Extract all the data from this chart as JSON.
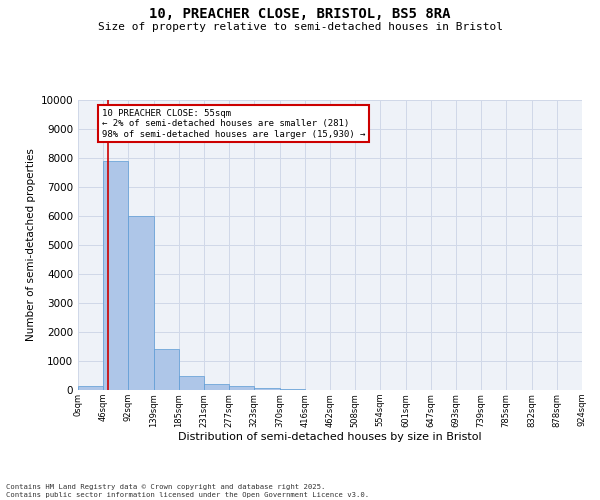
{
  "title_line1": "10, PREACHER CLOSE, BRISTOL, BS5 8RA",
  "title_line2": "Size of property relative to semi-detached houses in Bristol",
  "xlabel": "Distribution of semi-detached houses by size in Bristol",
  "ylabel": "Number of semi-detached properties",
  "property_size": 55,
  "annotation_line1": "10 PREACHER CLOSE: 55sqm",
  "annotation_line2": "← 2% of semi-detached houses are smaller (281)",
  "annotation_line3": "98% of semi-detached houses are larger (15,930) →",
  "bin_edges": [
    0,
    46,
    92,
    139,
    185,
    231,
    277,
    323,
    370,
    416,
    462,
    508,
    554,
    601,
    647,
    693,
    739,
    785,
    832,
    878,
    924
  ],
  "bin_labels": [
    "0sqm",
    "46sqm",
    "92sqm",
    "139sqm",
    "185sqm",
    "231sqm",
    "277sqm",
    "323sqm",
    "370sqm",
    "416sqm",
    "462sqm",
    "508sqm",
    "554sqm",
    "601sqm",
    "647sqm",
    "693sqm",
    "739sqm",
    "785sqm",
    "832sqm",
    "878sqm",
    "924sqm"
  ],
  "bar_values": [
    130,
    7900,
    6000,
    1400,
    480,
    220,
    130,
    70,
    30,
    5,
    2,
    1,
    0,
    0,
    0,
    0,
    0,
    0,
    0,
    0
  ],
  "bar_color": "#aec6e8",
  "bar_edge_color": "#5b9bd5",
  "vline_color": "#cc0000",
  "annotation_box_color": "#cc0000",
  "grid_color": "#d0d8e8",
  "bg_color": "#eef2f8",
  "ylim": [
    0,
    10000
  ],
  "yticks": [
    0,
    1000,
    2000,
    3000,
    4000,
    5000,
    6000,
    7000,
    8000,
    9000,
    10000
  ],
  "footer_line1": "Contains HM Land Registry data © Crown copyright and database right 2025.",
  "footer_line2": "Contains public sector information licensed under the Open Government Licence v3.0."
}
